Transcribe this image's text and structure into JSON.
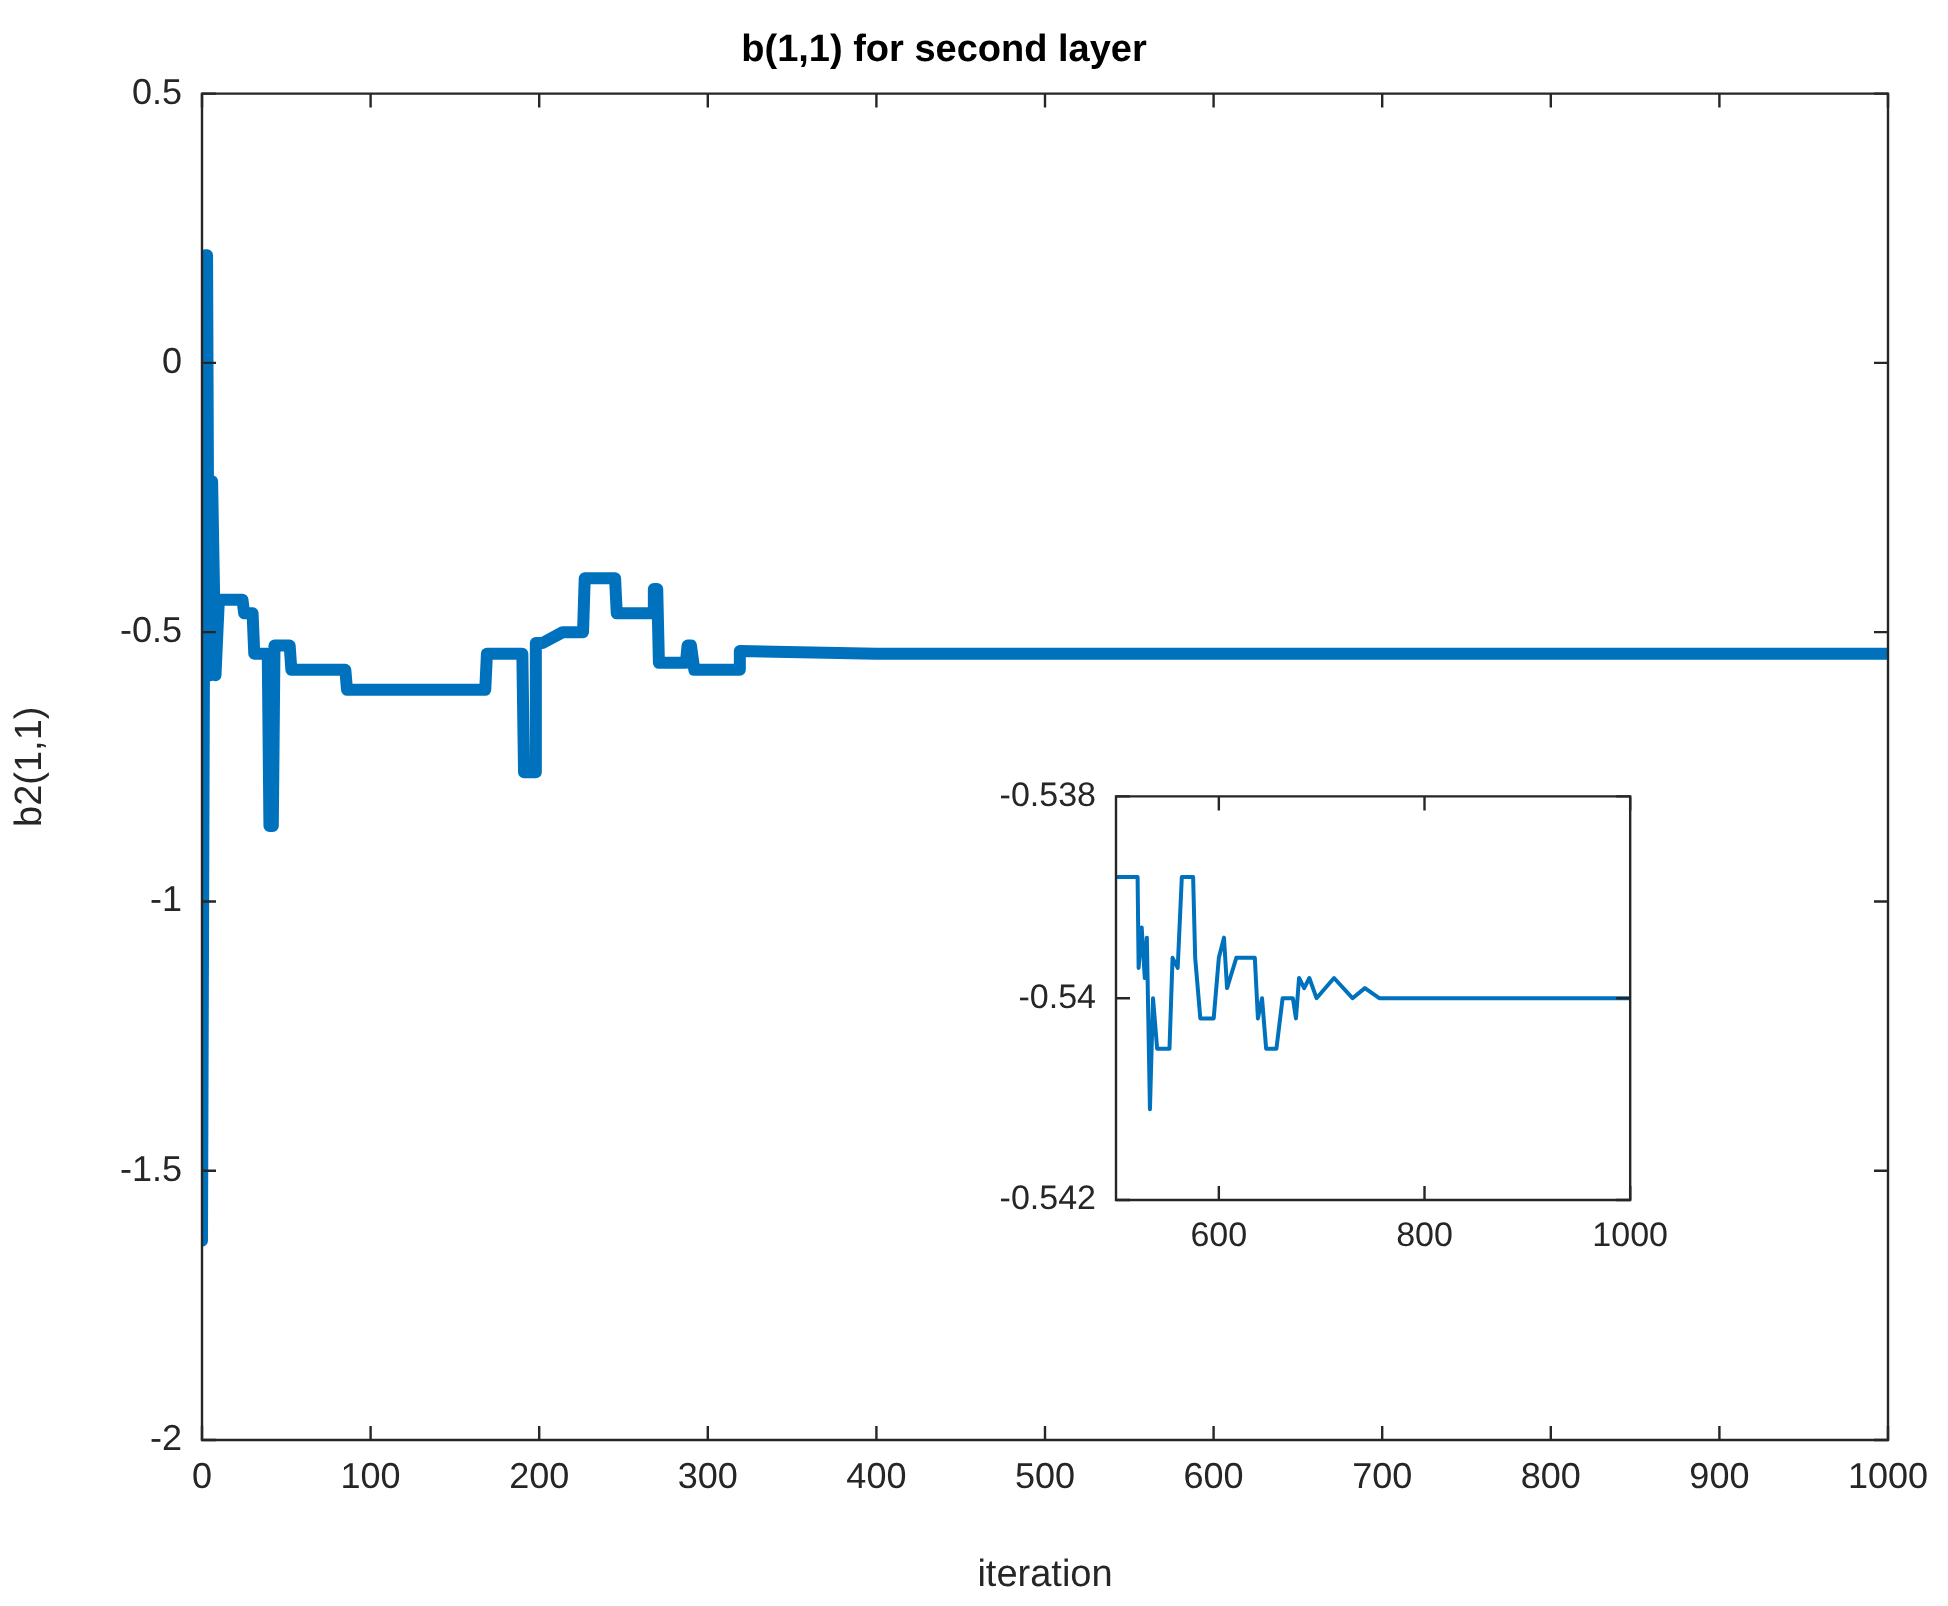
{
  "chart_data": [
    {
      "type": "line",
      "title": "b(1,1) for second layer",
      "xlabel": "iteration",
      "ylabel": "b2(1,1)",
      "xlim": [
        0,
        1000
      ],
      "ylim": [
        -2,
        0.5
      ],
      "xticks": [
        0,
        100,
        200,
        300,
        400,
        500,
        600,
        700,
        800,
        900,
        1000
      ],
      "yticks": [
        -2,
        -1.5,
        -1,
        -0.5,
        0,
        0.5
      ],
      "series": [
        {
          "color": "#0072bd",
          "x": [
            0,
            1,
            2,
            3,
            4,
            5,
            6,
            7,
            8,
            10,
            24,
            25,
            30,
            31,
            39,
            40,
            42,
            43,
            52,
            53,
            85,
            86,
            168,
            169,
            190,
            191,
            197,
            198,
            202,
            214,
            215,
            226,
            227,
            245,
            246,
            267,
            268,
            270,
            271,
            287,
            288,
            290,
            292,
            318,
            319,
            400,
            1000
          ],
          "values": [
            -1.63,
            -1.63,
            0.2,
            0.2,
            -0.58,
            -0.58,
            -0.22,
            -0.22,
            -0.58,
            -0.44,
            -0.44,
            -0.465,
            -0.465,
            -0.54,
            -0.54,
            -0.86,
            -0.86,
            -0.525,
            -0.525,
            -0.57,
            -0.57,
            -0.607,
            -0.607,
            -0.54,
            -0.54,
            -0.76,
            -0.76,
            -0.52,
            -0.52,
            -0.5,
            -0.5,
            -0.5,
            -0.4,
            -0.4,
            -0.465,
            -0.465,
            -0.42,
            -0.42,
            -0.557,
            -0.557,
            -0.525,
            -0.525,
            -0.57,
            -0.57,
            -0.535,
            -0.54,
            -0.54
          ]
        }
      ]
    },
    {
      "type": "line",
      "xlim": [
        500,
        1000
      ],
      "ylim": [
        -0.542,
        -0.538
      ],
      "xticks": [
        600,
        800,
        1000
      ],
      "yticks": [
        -0.542,
        -0.54,
        -0.538
      ],
      "series": [
        {
          "color": "#0072bd",
          "x": [
            500,
            521,
            522,
            525,
            528,
            530,
            533,
            536,
            540,
            552,
            555,
            560,
            564,
            575,
            577,
            582,
            595,
            600,
            605,
            608,
            611,
            617,
            635,
            638,
            642,
            646,
            656,
            662,
            672,
            675,
            678,
            683,
            688,
            695,
            712,
            730,
            742,
            756,
            1000
          ],
          "values": [
            -0.5388,
            -0.5388,
            -0.5397,
            -0.5393,
            -0.5398,
            -0.5394,
            -0.5411,
            -0.54,
            -0.5405,
            -0.5405,
            -0.5396,
            -0.5397,
            -0.5388,
            -0.5388,
            -0.5396,
            -0.5402,
            -0.5402,
            -0.5396,
            -0.5394,
            -0.5399,
            -0.5398,
            -0.5396,
            -0.5396,
            -0.5402,
            -0.54,
            -0.5405,
            -0.5405,
            -0.54,
            -0.54,
            -0.5402,
            -0.5398,
            -0.5399,
            -0.5398,
            -0.54,
            -0.5398,
            -0.54,
            -0.5399,
            -0.54,
            -0.54
          ]
        }
      ]
    }
  ]
}
